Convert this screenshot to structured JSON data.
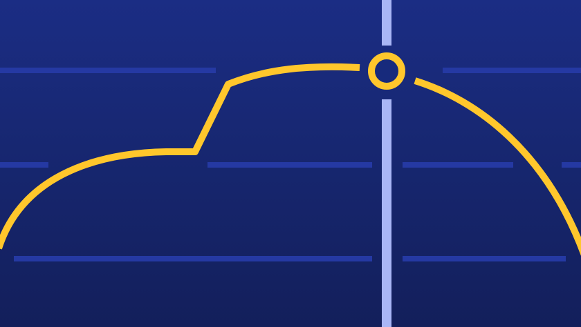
{
  "colors": {
    "background_top": "#1b2d84",
    "background_bottom": "#131f5b",
    "gridline": "#2539a3",
    "cursor_line": "#a9b6f6",
    "curve": "#ffc72c",
    "marker": "#ffc72c"
  },
  "icons": {
    "marker": "ring-marker-icon"
  }
}
